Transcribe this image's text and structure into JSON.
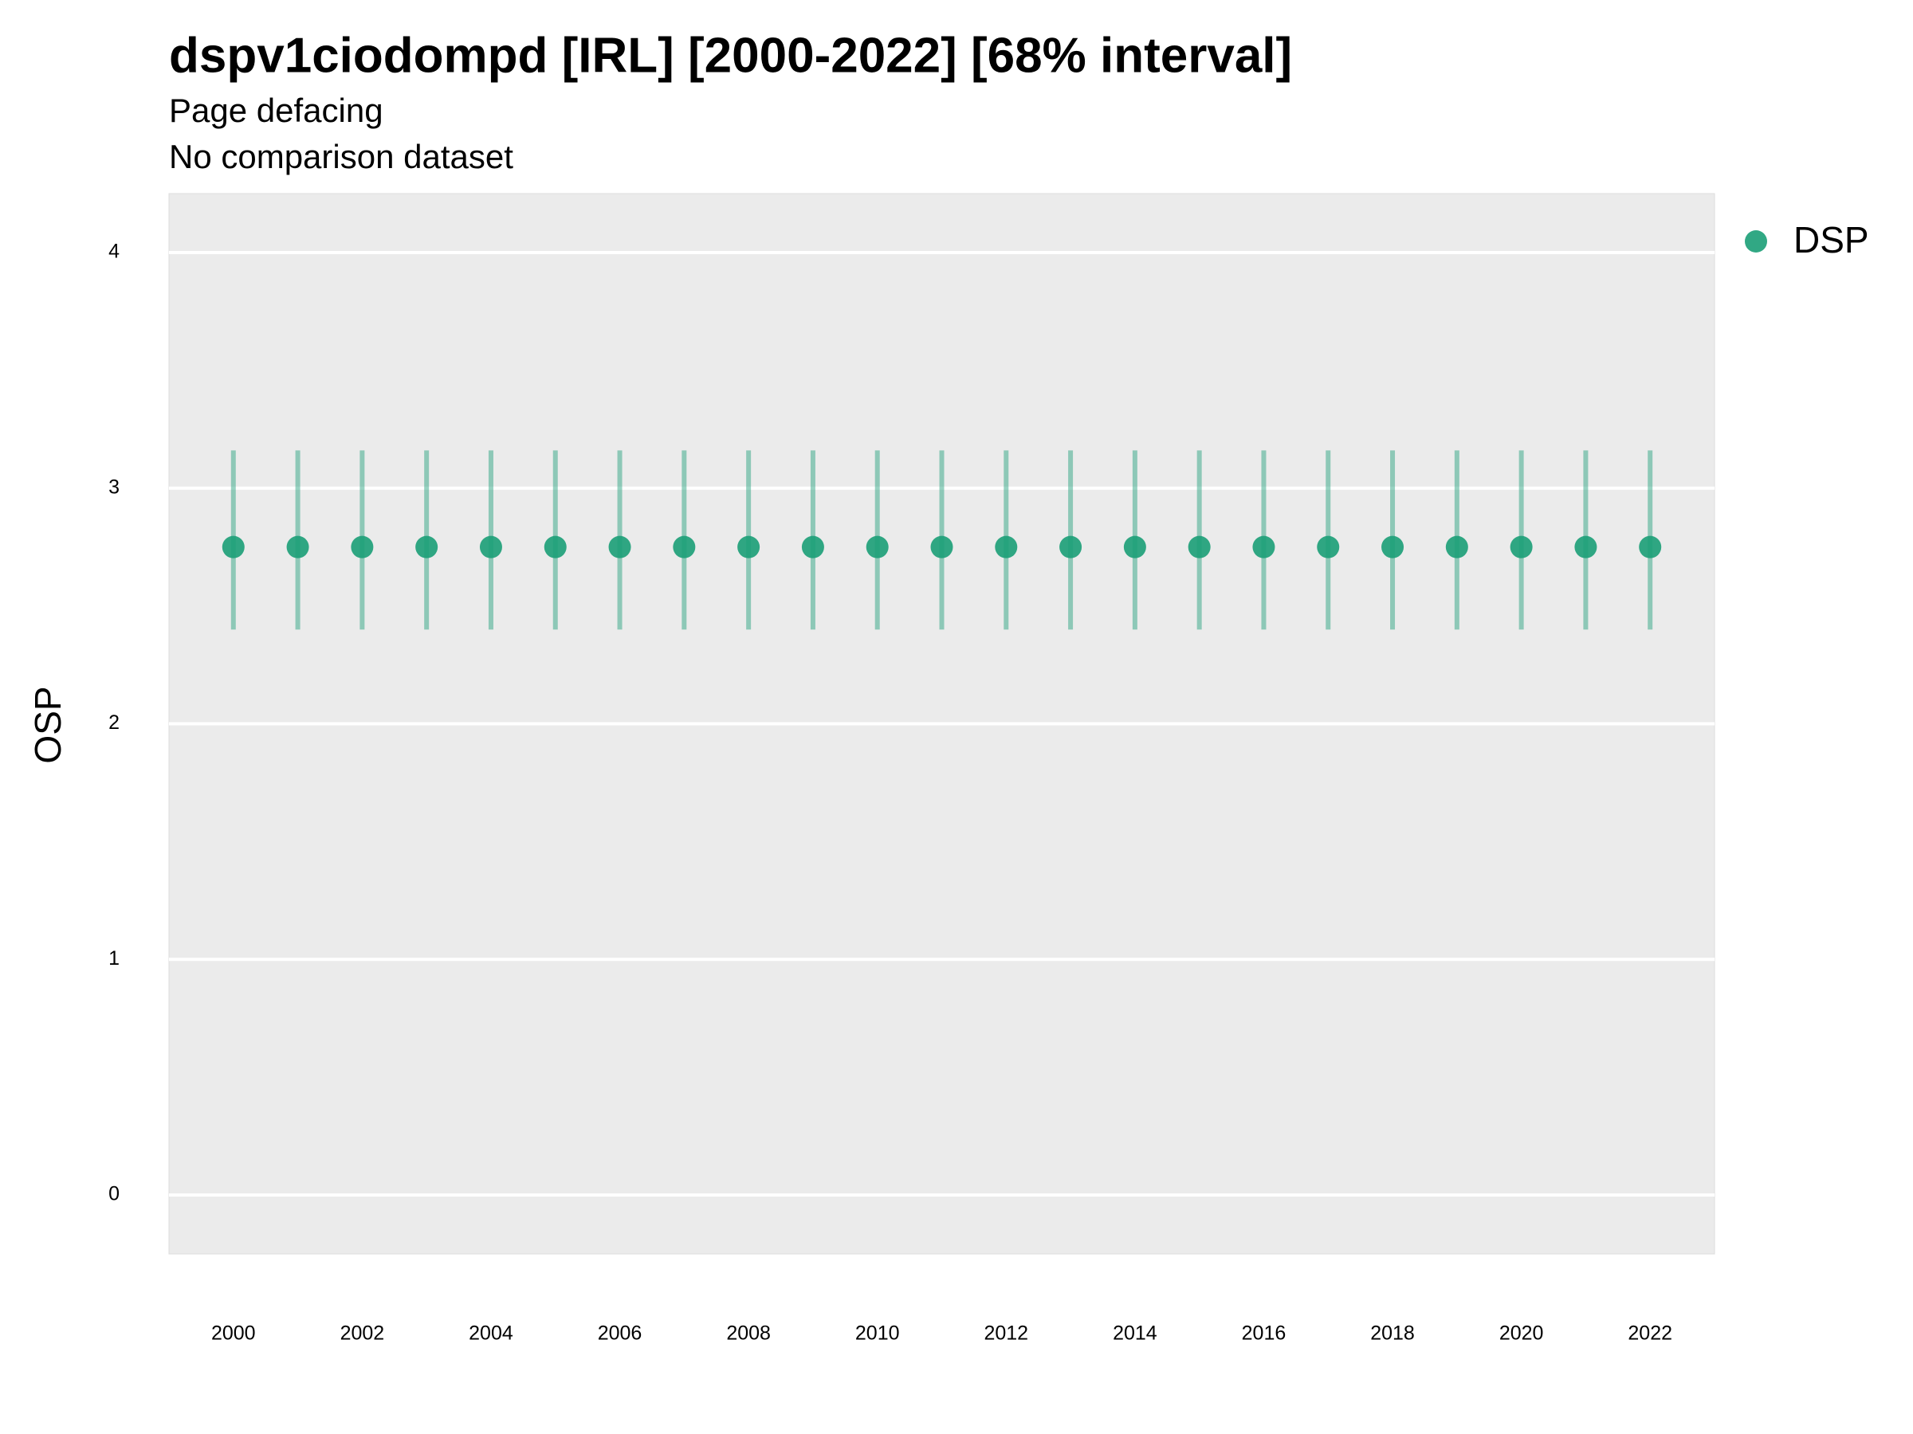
{
  "chart_data": {
    "type": "pointrange",
    "title": "dspv1ciodompd [IRL] [2000-2022] [68% interval]",
    "subtitle": "Page defacing",
    "caption": "No comparison dataset",
    "y_label": "OSP",
    "x": [
      2000,
      2001,
      2002,
      2003,
      2004,
      2005,
      2006,
      2007,
      2008,
      2009,
      2010,
      2011,
      2012,
      2013,
      2014,
      2015,
      2016,
      2017,
      2018,
      2019,
      2020,
      2021,
      2022
    ],
    "series": [
      {
        "name": "DSP",
        "color": "#1b9e77",
        "values": [
          2.75,
          2.75,
          2.75,
          2.75,
          2.75,
          2.75,
          2.75,
          2.75,
          2.75,
          2.75,
          2.75,
          2.75,
          2.75,
          2.75,
          2.75,
          2.75,
          2.75,
          2.75,
          2.75,
          2.75,
          2.75,
          2.75,
          2.75
        ],
        "lower": [
          2.4,
          2.4,
          2.4,
          2.4,
          2.4,
          2.4,
          2.4,
          2.4,
          2.4,
          2.4,
          2.4,
          2.4,
          2.4,
          2.4,
          2.4,
          2.4,
          2.4,
          2.4,
          2.4,
          2.4,
          2.4,
          2.4,
          2.4
        ],
        "upper": [
          3.16,
          3.16,
          3.16,
          3.16,
          3.16,
          3.16,
          3.16,
          3.16,
          3.16,
          3.16,
          3.16,
          3.16,
          3.16,
          3.16,
          3.16,
          3.16,
          3.16,
          3.16,
          3.16,
          3.16,
          3.16,
          3.16,
          3.16
        ]
      }
    ],
    "xlim": [
      1999,
      2023
    ],
    "xticks": [
      2000,
      2002,
      2004,
      2006,
      2008,
      2010,
      2012,
      2014,
      2016,
      2018,
      2020,
      2022
    ],
    "ylim": [
      -0.25,
      4.25
    ],
    "yticks": [
      0,
      1,
      2,
      3,
      4
    ],
    "grid": true,
    "legend": "right"
  }
}
